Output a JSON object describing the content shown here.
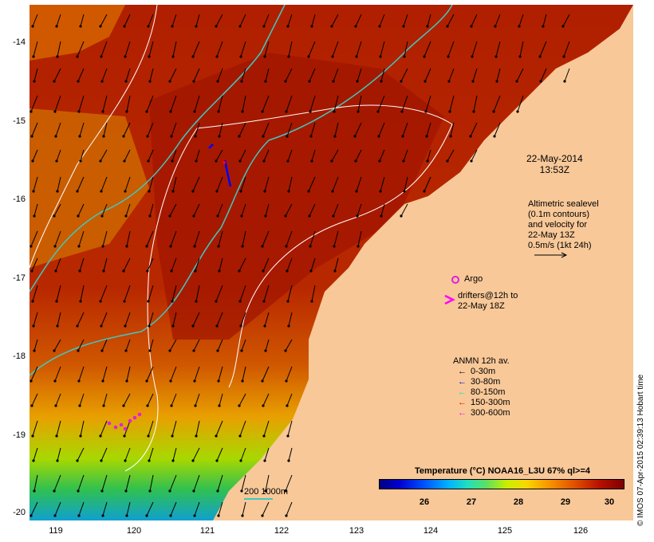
{
  "map": {
    "y_axis_labels": [
      "-14",
      "-15",
      "-16",
      "-17",
      "-18",
      "-19",
      "-20"
    ],
    "x_axis_labels": [
      "119",
      "120",
      "121",
      "122",
      "123",
      "124",
      "125",
      "126"
    ],
    "lon_range": [
      118.6,
      126.7
    ],
    "lat_range": [
      -20.1,
      -13.5
    ],
    "colors": {
      "land": "#f8c898",
      "warm_water": "#a81800",
      "mid_water": "#d86000",
      "cool_water": "#e8a000",
      "coast_green": "#30c040",
      "coast_blue": "#00a0e0",
      "contour_cyan": "#40c8c0",
      "contour_white": "#ffffff",
      "argo_magenta": "#e020e0"
    }
  },
  "date": {
    "line1": "22-May-2014",
    "line2": "13:53Z"
  },
  "altimetry": {
    "lines": [
      "Altimetric sealevel",
      "(0.1m contours)",
      "and velocity for",
      "22-May 13Z",
      "0.5m/s (1kt 24h)"
    ]
  },
  "argo": {
    "label": "Argo"
  },
  "drifters": {
    "line1": "drifters@12h to",
    "line2": "22-May 18Z"
  },
  "anmn": {
    "title": "ANMN 12h av.",
    "items": [
      {
        "label": "0-30m",
        "color": "#000000"
      },
      {
        "label": "30-80m",
        "color": "#0000ff"
      },
      {
        "label": "80-150m",
        "color": "#00e0e0"
      },
      {
        "label": "150-300m",
        "color": "#ff0000"
      },
      {
        "label": "300-600m",
        "color": "#ff00ff"
      }
    ]
  },
  "bathy": {
    "label": "200 1000m"
  },
  "colorbar": {
    "title": "Temperature (°C) NOAA16_L3U 67% ql>=4",
    "ticks": [
      "26",
      "27",
      "28",
      "29",
      "30"
    ]
  },
  "credit": "© IMOS 07-Apr-2015 02:39:13 Hobart time"
}
